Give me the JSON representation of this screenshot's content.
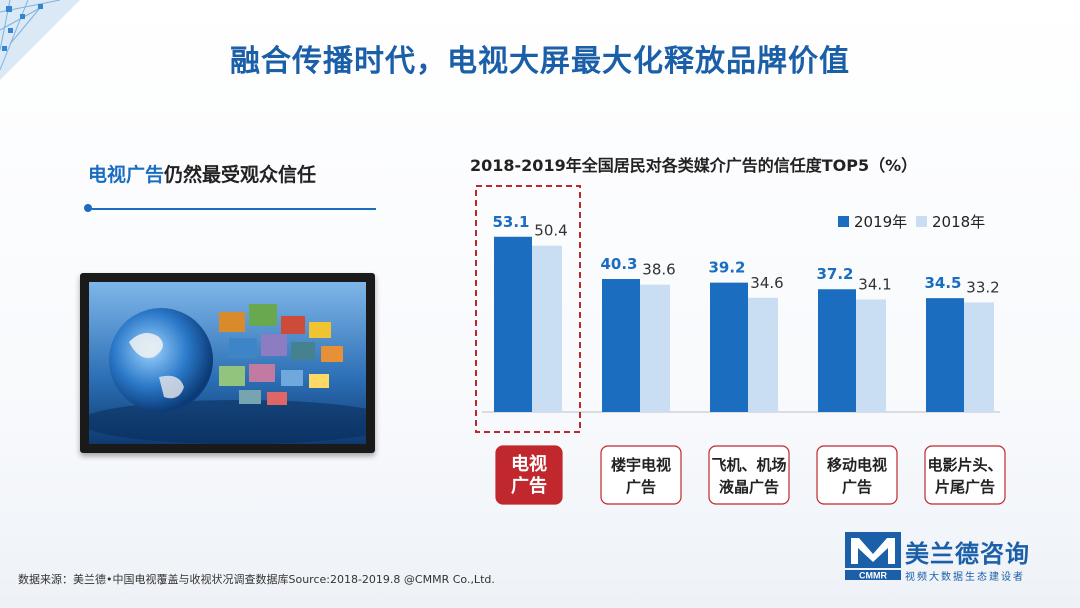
{
  "page": {
    "title": "融合传播时代，电视大屏最大化释放品牌价值",
    "subheading_accent": "电视广告",
    "subheading_rest": "仍然最受观众信任",
    "source_note": "数据来源：美兰德•中国电视覆盖与收视状况调查数据库Source:2018-2019.8 @CMMR Co.,Ltd."
  },
  "brand": {
    "logo_letters": "CMMR",
    "name": "美兰德咨询",
    "tagline": "视频大数据生态建设者"
  },
  "colors": {
    "series_2019": "#1a6dbf",
    "series_2018": "#c9def2",
    "highlight_border": "#c0282d",
    "highlight_fill": "#c0282d",
    "label_border": "#c0282d",
    "title_blue": "#1a5fa8"
  },
  "chart_data": {
    "type": "bar",
    "title": "2018-2019年全国居民对各类媒介广告的信任度TOP5（%）",
    "categories": [
      "电视广告",
      "楼宇电视广告",
      "飞机、机场液晶广告",
      "移动电视广告",
      "电影片头、片尾广告"
    ],
    "category_lines": [
      [
        "电视",
        "广告"
      ],
      [
        "楼宇电视",
        "广告"
      ],
      [
        "飞机、机场",
        "液晶广告"
      ],
      [
        "移动电视",
        "广告"
      ],
      [
        "电影片头、",
        "片尾广告"
      ]
    ],
    "series": [
      {
        "name": "2019年",
        "values": [
          53.1,
          40.3,
          39.2,
          37.2,
          34.5
        ]
      },
      {
        "name": "2018年",
        "values": [
          50.4,
          38.6,
          34.6,
          34.1,
          33.2
        ]
      }
    ],
    "ylim": [
      0,
      60
    ],
    "legend": "top-right",
    "highlight_category": 0,
    "grid": false
  }
}
